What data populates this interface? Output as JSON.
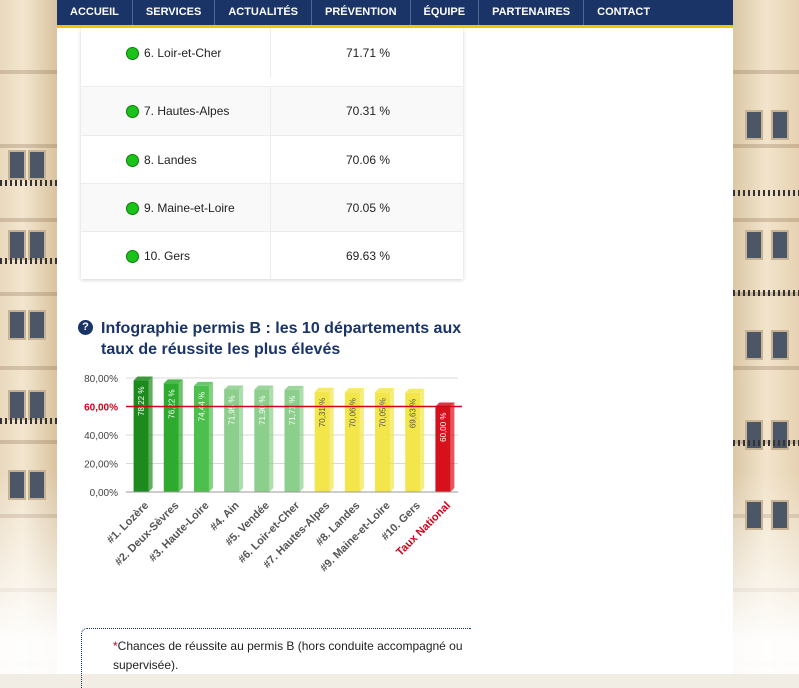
{
  "nav": {
    "items": [
      "ACCUEIL",
      "SERVICES",
      "ACTUALITÉS",
      "PRÉVENTION",
      "ÉQUIPE",
      "PARTENAIRES",
      "CONTACT"
    ]
  },
  "table": {
    "rows": [
      {
        "name": "6. Loir-et-Cher",
        "value": "71.71 %"
      },
      {
        "name": "7. Hautes-Alpes",
        "value": "70.31 %"
      },
      {
        "name": "8. Landes",
        "value": "70.06 %"
      },
      {
        "name": "9. Maine-et-Loire",
        "value": "70.05 %"
      },
      {
        "name": "10. Gers",
        "value": "69.63 %"
      }
    ]
  },
  "heading": {
    "icon": "question-icon",
    "icon_glyph": "?",
    "text": "Infographie permis B : les 10 départements aux taux de réussite les plus élevés"
  },
  "chart_data": {
    "type": "bar",
    "categories": [
      "#1. Lozère",
      "#2. Deux-Sèvres",
      "#3. Haute-Loire",
      "#4. Ain",
      "#5. Vendée",
      "#6. Loir-et-Cher",
      "#7. Hautes-Alpes",
      "#8. Landes",
      "#9. Maine-et-Loire",
      "#10. Gers",
      "Taux National"
    ],
    "values": [
      78.22,
      76.22,
      74.44,
      71.95,
      71.9,
      71.71,
      70.31,
      70.06,
      70.05,
      69.63,
      60.0
    ],
    "value_labels": [
      "78,22 %",
      "76,22 %",
      "74,44 %",
      "71,95 %",
      "71,90 %",
      "71,71 %",
      "70,31 %",
      "70,06 %",
      "70,05 %",
      "69,63 %",
      "60,00 %"
    ],
    "colors": [
      "#1d8a1d",
      "#2eaa2e",
      "#4cbf4c",
      "#8ccf8c",
      "#8ccf8c",
      "#8ccf8c",
      "#f2e64a",
      "#f2e64a",
      "#f2e64a",
      "#f2e64a",
      "#d8101c"
    ],
    "yticks": [
      "0,00%",
      "20,00%",
      "40,00%",
      "60,00%",
      "80,00%"
    ],
    "ytick_values": [
      0,
      20,
      40,
      60,
      80
    ],
    "ylim": [
      0,
      80
    ],
    "reference_line": {
      "value": 60,
      "label": "60,00%",
      "color": "#d0021b"
    },
    "highlight_category_color": "#d0021b",
    "title": "",
    "xlabel": "",
    "ylabel": "",
    "grid": true
  },
  "note": {
    "star": "*",
    "text": "Chances de réussite au permis B (hors conduite accompagné ou supervisée)."
  }
}
